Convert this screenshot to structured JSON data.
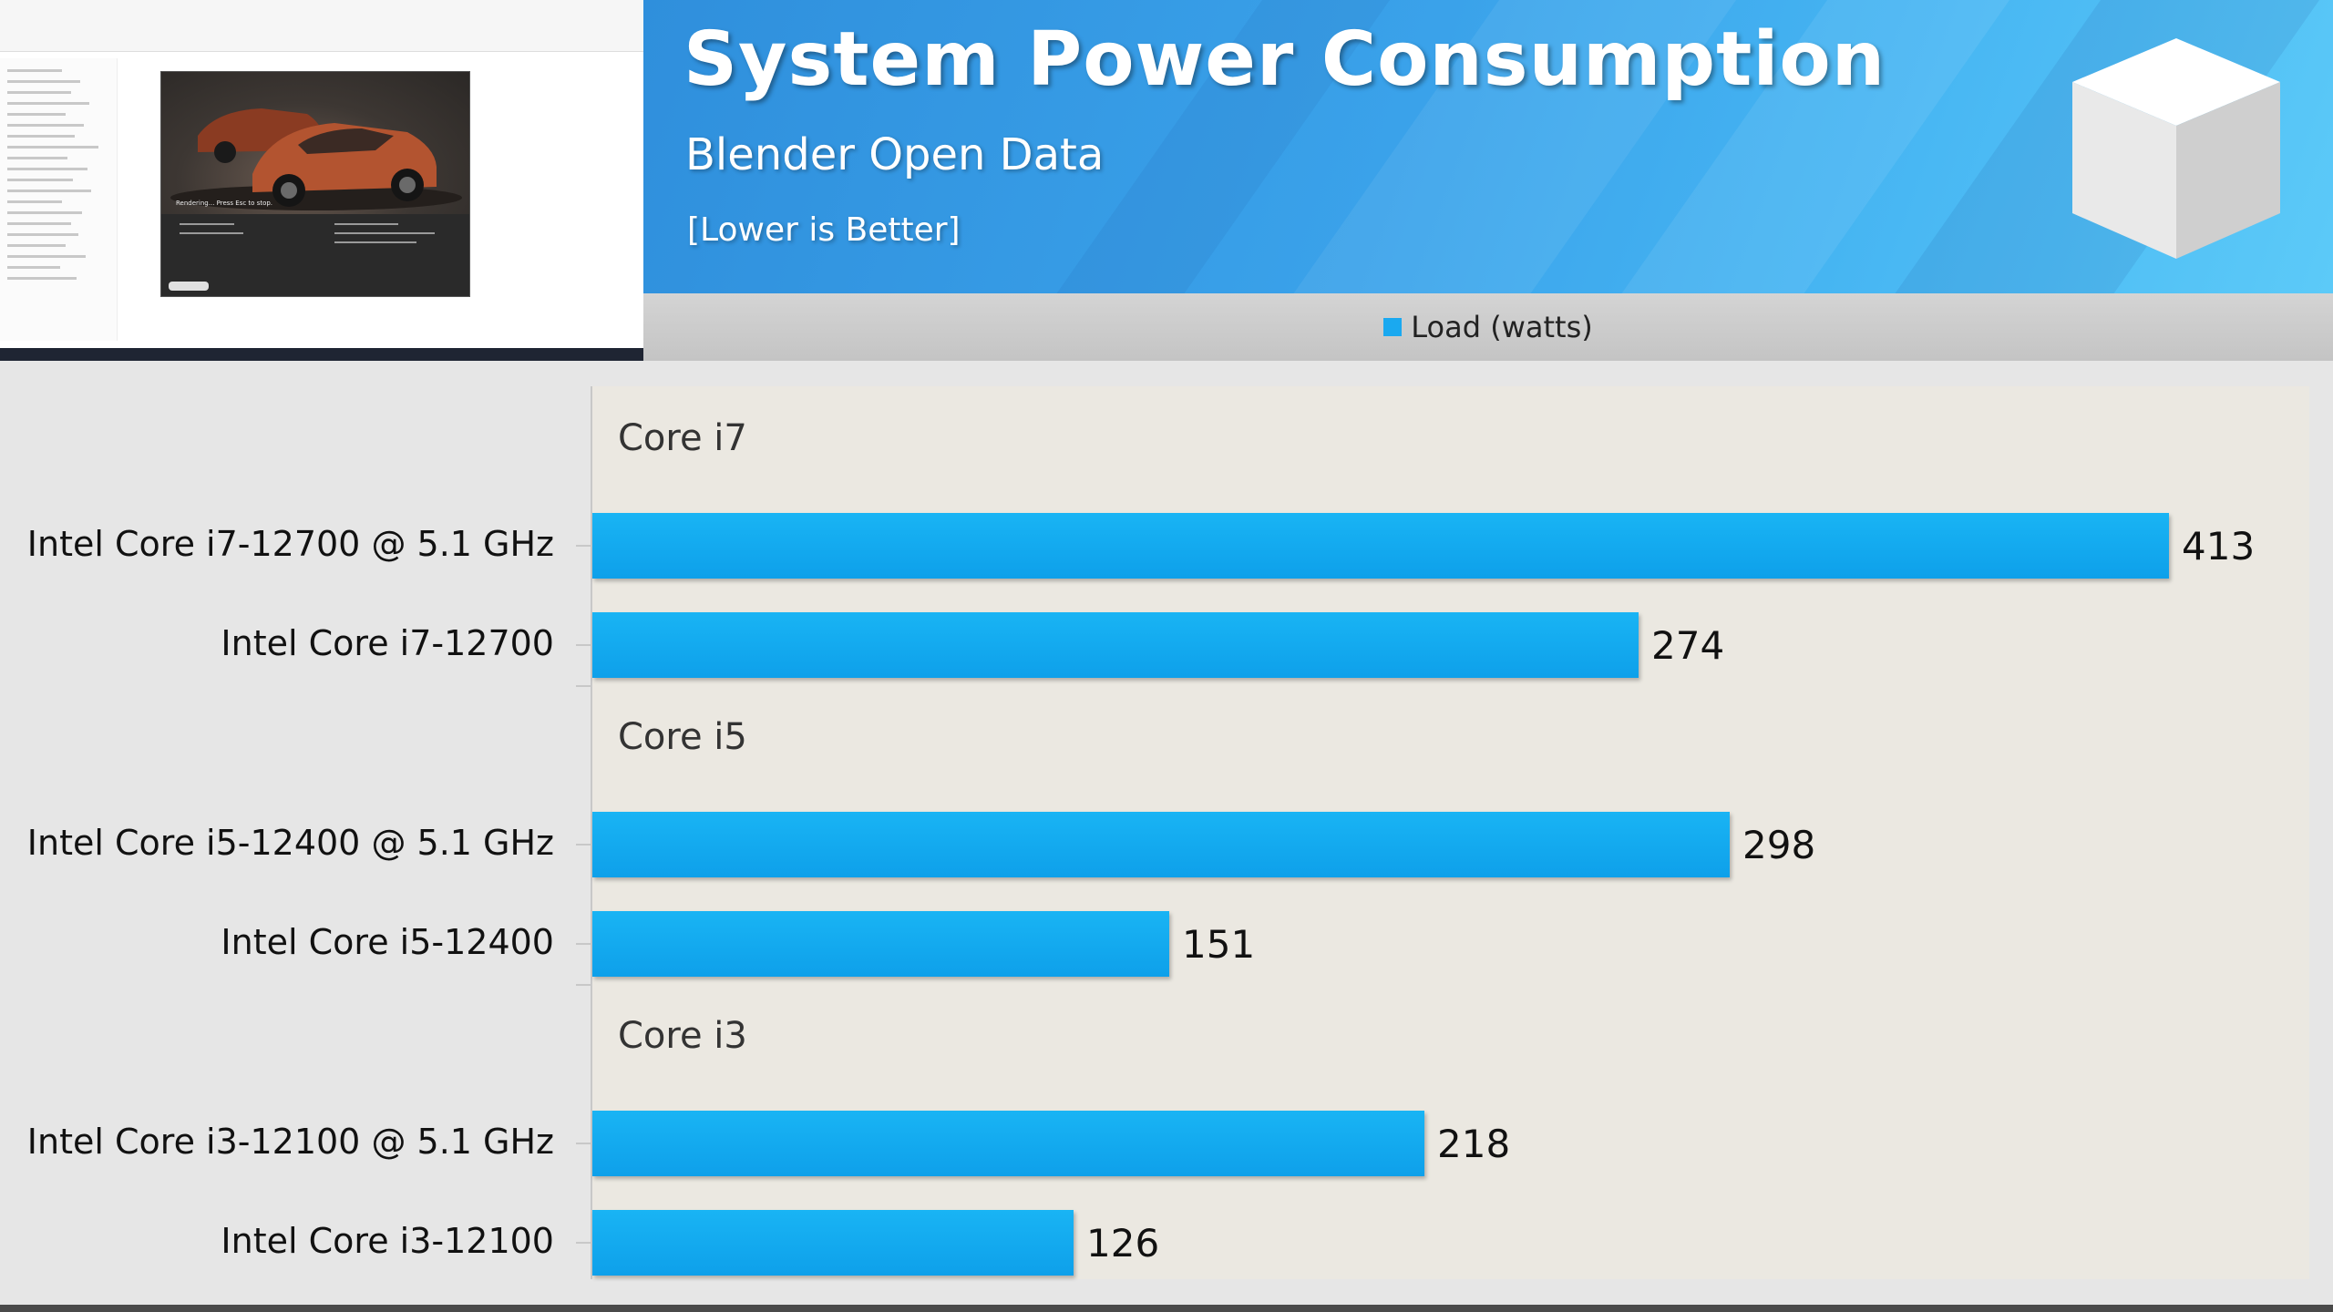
{
  "header": {
    "title": "System Power Consumption",
    "subtitle": "Blender Open Data",
    "note": "[Lower is Better]"
  },
  "legend": {
    "label": "Load (watts)",
    "color": "#1aa9f0"
  },
  "inset": {
    "status_text": "Rendering... Press Esc to stop."
  },
  "chart_data": {
    "type": "bar",
    "orientation": "horizontal",
    "title": "System Power Consumption",
    "subtitle": "Blender Open Data",
    "groups": [
      {
        "name": "Core i7",
        "categories": [
          "Intel Core i7-12700 @ 5.1 GHz",
          "Intel Core i7-12700"
        ],
        "values": [
          413,
          274
        ]
      },
      {
        "name": "Core i5",
        "categories": [
          "Intel Core i5-12400 @ 5.1 GHz",
          "Intel Core i5-12400"
        ],
        "values": [
          298,
          151
        ]
      },
      {
        "name": "Core i3",
        "categories": [
          "Intel Core i3-12100 @ 5.1 GHz",
          "Intel Core i3-12100"
        ],
        "values": [
          218,
          126
        ]
      }
    ],
    "series": [
      {
        "name": "Load (watts)",
        "values": [
          413,
          274,
          298,
          151,
          218,
          126
        ]
      }
    ],
    "xlim": [
      0,
      450
    ],
    "grid": false,
    "legend_position": "top-center",
    "bar_color": "#1aa9f0"
  }
}
